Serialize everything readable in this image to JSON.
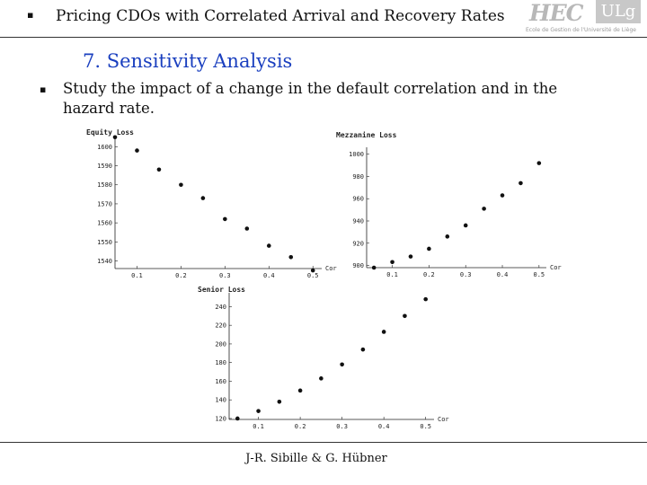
{
  "header": {
    "bullet": "▪",
    "title": "Pricing CDOs with Correlated Arrival and Recovery Rates",
    "logo": {
      "left": "HEC",
      "right": "ULg",
      "subtitle": "Ecole de Gestion de l'Université de Liège"
    }
  },
  "section": {
    "title": "7. Sensitivity Analysis"
  },
  "body": {
    "bullet": "▪",
    "text": "Study the impact of a change in the default correlation and in the hazard rate."
  },
  "footer": {
    "authors": "J-R. Sibille & G. Hübner"
  },
  "chart_data": [
    {
      "type": "scatter",
      "title": "Equity Loss",
      "xlabel": "Cor",
      "ylabel": "",
      "xlim": [
        0.05,
        0.52
      ],
      "ylim": [
        1536,
        1603
      ],
      "xticks": [
        0.1,
        0.2,
        0.3,
        0.4,
        0.5
      ],
      "xtick_labels": [
        "0.1",
        "0.2",
        "0.3",
        "0.4",
        "0.5"
      ],
      "yticks": [
        1540,
        1550,
        1560,
        1570,
        1580,
        1590,
        1600
      ],
      "ytick_labels": [
        "1540",
        "1550",
        "1560",
        "1570",
        "1580",
        "1590",
        "1600"
      ],
      "grid": false,
      "x": [
        0.05,
        0.1,
        0.15,
        0.2,
        0.25,
        0.3,
        0.35,
        0.4,
        0.45,
        0.5
      ],
      "y": [
        1605,
        1598,
        1588,
        1580,
        1573,
        1562,
        1557,
        1548,
        1542,
        1535
      ]
    },
    {
      "type": "scatter",
      "title": "Mezzanine Loss",
      "xlabel": "Cor",
      "ylabel": "",
      "xlim": [
        0.03,
        0.52
      ],
      "ylim": [
        898,
        1003
      ],
      "xticks": [
        0.1,
        0.2,
        0.3,
        0.4,
        0.5
      ],
      "xtick_labels": [
        "0.1",
        "0.2",
        "0.3",
        "0.4",
        "0.5"
      ],
      "yticks": [
        900,
        920,
        940,
        960,
        980,
        1000
      ],
      "ytick_labels": [
        "900",
        "920",
        "940",
        "960",
        "980",
        "1000"
      ],
      "grid": false,
      "x": [
        0.05,
        0.1,
        0.15,
        0.2,
        0.25,
        0.3,
        0.35,
        0.4,
        0.45,
        0.5
      ],
      "y": [
        898,
        903,
        908,
        915,
        926,
        936,
        951,
        963,
        974,
        992
      ]
    },
    {
      "type": "scatter",
      "title": "Senior Loss",
      "xlabel": "Cor",
      "ylabel": "",
      "xlim": [
        0.03,
        0.52
      ],
      "ylim": [
        119,
        251
      ],
      "xticks": [
        0.1,
        0.2,
        0.3,
        0.4,
        0.5
      ],
      "xtick_labels": [
        "0.1",
        "0.2",
        "0.3",
        "0.4",
        "0.5"
      ],
      "yticks": [
        120,
        140,
        160,
        180,
        200,
        220,
        240
      ],
      "ytick_labels": [
        "120",
        "140",
        "160",
        "180",
        "200",
        "220",
        "240"
      ],
      "grid": false,
      "x": [
        0.05,
        0.1,
        0.15,
        0.2,
        0.25,
        0.3,
        0.35,
        0.4,
        0.45,
        0.5
      ],
      "y": [
        120,
        128,
        138,
        150,
        163,
        178,
        194,
        213,
        230,
        248
      ]
    }
  ]
}
